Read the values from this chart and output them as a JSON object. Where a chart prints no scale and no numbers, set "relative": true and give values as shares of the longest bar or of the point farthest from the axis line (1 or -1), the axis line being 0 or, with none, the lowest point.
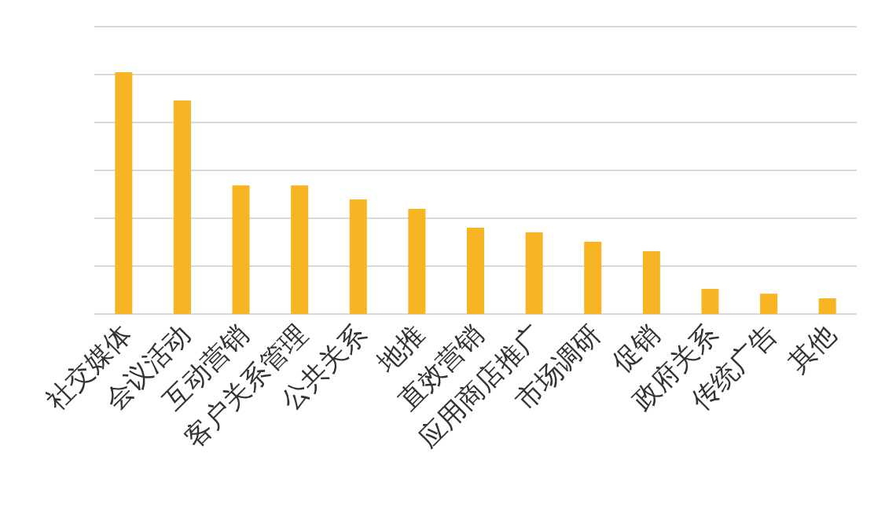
{
  "chart_data": {
    "type": "bar",
    "relative": true,
    "grid": true,
    "color": "#f7b423",
    "categories": [
      "社交媒体",
      "会议活动",
      "互动营销",
      "客户关系管理",
      "公共关系",
      "地推",
      "直效营销",
      "应用商店推广",
      "市场调研",
      "促销",
      "政府关系",
      "传统广告",
      "其他"
    ],
    "values": [
      1,
      0.883,
      0.532,
      0.532,
      0.474,
      0.435,
      0.357,
      0.338,
      0.299,
      0.26,
      0.104,
      0.084,
      0.065
    ]
  }
}
